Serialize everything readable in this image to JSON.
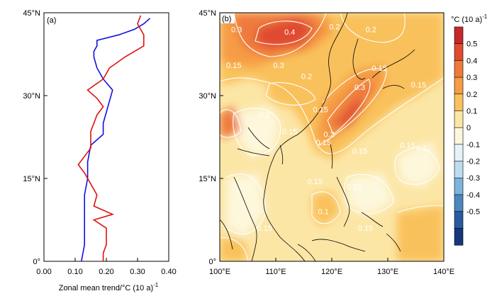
{
  "chart_data": [
    {
      "type": "line",
      "panel": "(a)",
      "xlabel": "Zonal mean trend/°C (10 a)",
      "xlabel_sup": "-1",
      "xlim": [
        0.0,
        0.4
      ],
      "ylim": [
        0,
        45
      ],
      "xticks": [
        "0.00",
        "0.10",
        "0.20",
        "0.30",
        "0.40"
      ],
      "yticks": [
        "0°",
        "15°N",
        "30°N",
        "45°N"
      ],
      "series": [
        {
          "color": "#1010e0",
          "y": [
            0,
            3,
            6,
            9,
            12,
            15,
            18,
            21,
            23,
            25,
            27,
            29,
            31,
            33,
            35,
            37,
            38,
            39,
            40,
            41,
            42,
            43,
            44
          ],
          "x": [
            0.12,
            0.13,
            0.13,
            0.13,
            0.13,
            0.14,
            0.14,
            0.15,
            0.19,
            0.19,
            0.2,
            0.21,
            0.22,
            0.19,
            0.17,
            0.16,
            0.16,
            0.17,
            0.17,
            0.24,
            0.29,
            0.32,
            0.34
          ]
        },
        {
          "color": "#e01010",
          "y": [
            0,
            1.5,
            3,
            4.5,
            6,
            7.5,
            8.5,
            10,
            12,
            14,
            16,
            17.5,
            19,
            20.5,
            22,
            23.5,
            25,
            26.5,
            28,
            29.5,
            31,
            33,
            35,
            37,
            39,
            41,
            43,
            44.5
          ],
          "x": [
            0.19,
            0.19,
            0.2,
            0.2,
            0.2,
            0.16,
            0.22,
            0.16,
            0.17,
            0.15,
            0.13,
            0.11,
            0.13,
            0.15,
            0.15,
            0.15,
            0.16,
            0.17,
            0.19,
            0.17,
            0.14,
            0.19,
            0.21,
            0.26,
            0.32,
            0.32,
            0.3,
            0.31
          ]
        }
      ]
    },
    {
      "type": "heatmap",
      "panel": "(b)",
      "xlim": [
        100,
        140
      ],
      "ylim": [
        0,
        45
      ],
      "xticks": [
        "100°E",
        "110°E",
        "120°E",
        "130°E",
        "140°E"
      ],
      "yticks": [
        "0°",
        "15°N",
        "30°N",
        "45°N"
      ],
      "contour_labels": [
        {
          "text": "0.4",
          "lon": 112.5,
          "lat": 41.0
        },
        {
          "text": "0.3",
          "lon": 103.0,
          "lat": 41.5
        },
        {
          "text": "0.3",
          "lon": 110.5,
          "lat": 35.0
        },
        {
          "text": "0.3",
          "lon": 125.0,
          "lat": 31.0
        },
        {
          "text": "0.2",
          "lon": 120.5,
          "lat": 42.0
        },
        {
          "text": "0.2",
          "lon": 127.0,
          "lat": 41.5
        },
        {
          "text": "0.2",
          "lon": 115.5,
          "lat": 33.0
        },
        {
          "text": "0.2",
          "lon": 119.5,
          "lat": 22.5
        },
        {
          "text": "0.15",
          "lon": 102.5,
          "lat": 35.0
        },
        {
          "text": "0.15",
          "lon": 128.5,
          "lat": 34.5
        },
        {
          "text": "0.15",
          "lon": 135.5,
          "lat": 31.5
        },
        {
          "text": "0.15",
          "lon": 112.5,
          "lat": 23.0
        },
        {
          "text": "0.15",
          "lon": 118.0,
          "lat": 27.0
        },
        {
          "text": "0.15",
          "lon": 118.5,
          "lat": 21.0
        },
        {
          "text": "0.15",
          "lon": 125.0,
          "lat": 19.5
        },
        {
          "text": "0.15",
          "lon": 133.5,
          "lat": 20.5
        },
        {
          "text": "0.15",
          "lon": 117.0,
          "lat": 14.0
        },
        {
          "text": "0.15",
          "lon": 124.0,
          "lat": 13.0
        },
        {
          "text": "0.15",
          "lon": 108.0,
          "lat": 5.5
        },
        {
          "text": "0.15",
          "lon": 126.0,
          "lat": 5.5
        },
        {
          "text": "0.1",
          "lon": 108.0,
          "lat": 26.0
        },
        {
          "text": "0.1",
          "lon": 136.0,
          "lat": 20.0
        },
        {
          "text": "0.1",
          "lon": 118.5,
          "lat": 8.5
        }
      ],
      "colorbar": {
        "title": "°C (10 a)",
        "title_sup": "-1",
        "levels": [
          "0.5",
          "0.4",
          "0.3",
          "0.2",
          "0.1",
          "0",
          "-0.1",
          "-0.2",
          "-0.3",
          "-0.4",
          "-0.5"
        ],
        "colors": [
          "#c8282a",
          "#e04a30",
          "#ee7a3c",
          "#f59c45",
          "#f9c15c",
          "#fce6a6",
          "#fdf7dc",
          "#e6f2fa",
          "#bddcf0",
          "#7db4dc",
          "#4c86c0",
          "#2a5aa0",
          "#16377a"
        ]
      }
    }
  ]
}
